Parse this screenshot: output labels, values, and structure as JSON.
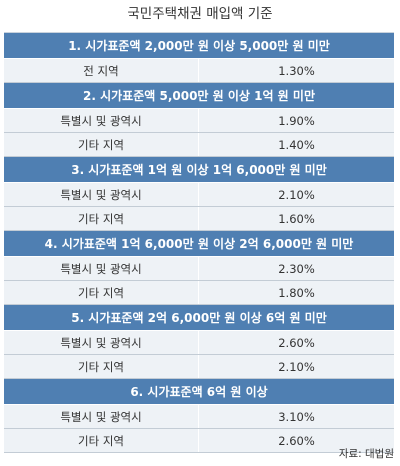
{
  "title": "국민주택채권 매입액 기준",
  "sections": [
    {
      "header": "1. 시가표준액 2,000만 원 이상 5,000만 원 미만",
      "rows": [
        {
          "region": "전 지역",
          "rate": "1.30%"
        }
      ]
    },
    {
      "header": "2. 시가표준액 5,000만 원 이상 1억 원 미만",
      "rows": [
        {
          "region": "특별시 및 광역시",
          "rate": "1.90%"
        },
        {
          "region": "기타 지역",
          "rate": "1.40%"
        }
      ]
    },
    {
      "header": "3. 시가표준액 1억 원 이상 1억 6,000만 원 미만",
      "rows": [
        {
          "region": "특별시 및 광역시",
          "rate": "2.10%"
        },
        {
          "region": "기타 지역",
          "rate": "1.60%"
        }
      ]
    },
    {
      "header": "4. 시가표준액 1억 6,000만 원 이상 2억 6,000만 원 미만",
      "rows": [
        {
          "region": "특별시 및 광역시",
          "rate": "2.30%"
        },
        {
          "region": "기타 지역",
          "rate": "1.80%"
        }
      ]
    },
    {
      "header": "5. 시가표준액 2억 6,000만 원 이상 6억 원 미만",
      "rows": [
        {
          "region": "특별시 및 광역시",
          "rate": "2.60%"
        },
        {
          "region": "기타 지역",
          "rate": "2.10%"
        }
      ]
    },
    {
      "header": "6. 시가표준액 6억 원 이상",
      "rows": [
        {
          "region": "특별시 및 광역시",
          "rate": "3.10%"
        },
        {
          "region": "기타 지역",
          "rate": "2.60%"
        }
      ]
    }
  ],
  "source": "자료: 대법원",
  "colors": {
    "header_bg": "#4f7fb2",
    "row_bg": "#eef2f6",
    "header_text": "#ffffff"
  }
}
